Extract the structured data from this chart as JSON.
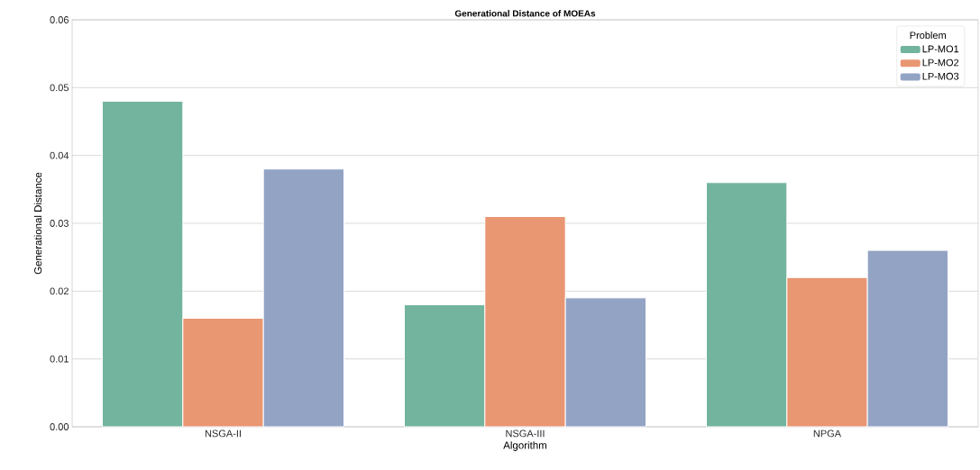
{
  "chart_data": {
    "type": "bar",
    "title": "Generational Distance of MOEAs",
    "xlabel": "Algorithm",
    "ylabel": "Generational Distance",
    "legend_title": "Problem",
    "categories": [
      "NSGA-II",
      "NSGA-III",
      "NPGA"
    ],
    "series": [
      {
        "name": "LP-MO1",
        "color": "#73b49f",
        "values": [
          0.048,
          0.018,
          0.036
        ]
      },
      {
        "name": "LP-MO2",
        "color": "#e99673",
        "values": [
          0.016,
          0.031,
          0.022
        ]
      },
      {
        "name": "LP-MO3",
        "color": "#93a3c4",
        "values": [
          0.038,
          0.019,
          0.026
        ]
      }
    ],
    "ylim": [
      0,
      0.06
    ],
    "yticks": [
      {
        "value": 0,
        "label": "0.00"
      },
      {
        "value": 0.01,
        "label": "0.01"
      },
      {
        "value": 0.02,
        "label": "0.02"
      },
      {
        "value": 0.03,
        "label": "0.03"
      },
      {
        "value": 0.04,
        "label": "0.04"
      },
      {
        "value": 0.05,
        "label": "0.05"
      },
      {
        "value": 0.06,
        "label": "0.06"
      }
    ],
    "grid": "y",
    "legend": "top right"
  }
}
